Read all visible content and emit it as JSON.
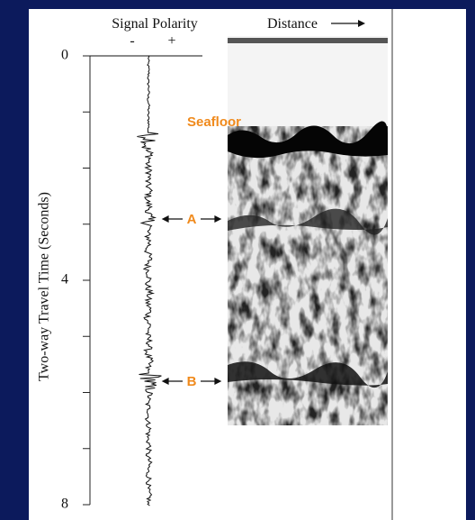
{
  "figure": {
    "header": {
      "signal_polarity": "Signal Polarity",
      "minus": "-",
      "plus": "+",
      "distance": "Distance"
    },
    "y_axis": {
      "label": "Two-way Travel Time (Seconds)",
      "ticks": [
        "0",
        "4",
        "8"
      ]
    },
    "annotations": {
      "seafloor": "Seafloor",
      "a": "A",
      "b": "B"
    }
  }
}
